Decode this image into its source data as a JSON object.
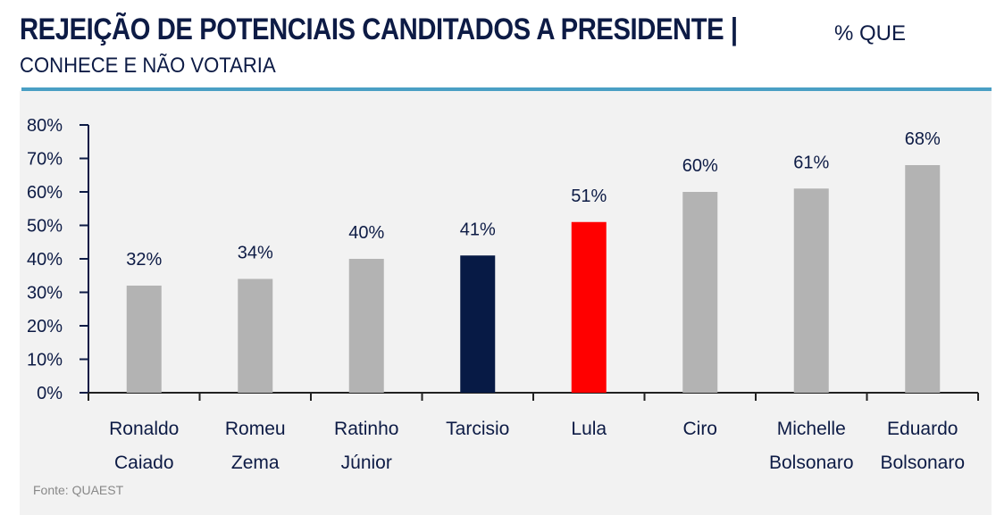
{
  "header": {
    "title": "REJEIÇÃO DE POTENCIAIS CANDITADOS A PRESIDENTE |",
    "subtitle_inline": "% QUE",
    "subtitle_line2": "CONHECE E NÃO VOTARIA"
  },
  "source": "Fonte: QUAEST",
  "colors": {
    "default_bar": "#b3b3b3",
    "tarcisio_bar": "#071a45",
    "lula_bar": "#ff0000",
    "text": "#0d1b45",
    "rule": "#4a9fc4"
  },
  "chart_data": {
    "type": "bar",
    "title": "REJEIÇÃO DE POTENCIAIS CANDITADOS A PRESIDENTE | % QUE CONHECE E NÃO VOTARIA",
    "categories": [
      [
        "Ronaldo",
        "Caiado"
      ],
      [
        "Romeu",
        "Zema"
      ],
      [
        "Ratinho",
        "Júnior"
      ],
      [
        "Tarcisio"
      ],
      [
        "Lula"
      ],
      [
        "Ciro"
      ],
      [
        "Michelle",
        "Bolsonaro"
      ],
      [
        "Eduardo",
        "Bolsonaro"
      ]
    ],
    "values": [
      32,
      34,
      40,
      41,
      51,
      60,
      61,
      68
    ],
    "data_labels": [
      "32%",
      "34%",
      "40%",
      "41%",
      "51%",
      "60%",
      "61%",
      "68%"
    ],
    "bar_colors": [
      "#b3b3b3",
      "#b3b3b3",
      "#b3b3b3",
      "#071a45",
      "#ff0000",
      "#b3b3b3",
      "#b3b3b3",
      "#b3b3b3"
    ],
    "yticks": [
      "0%",
      "10%",
      "20%",
      "30%",
      "40%",
      "50%",
      "60%",
      "70%",
      "80%"
    ],
    "ytick_values": [
      0,
      10,
      20,
      30,
      40,
      50,
      60,
      70,
      80
    ],
    "ylim": [
      0,
      80
    ],
    "xlabel": "",
    "ylabel": "",
    "grid": false,
    "legend": "none"
  }
}
